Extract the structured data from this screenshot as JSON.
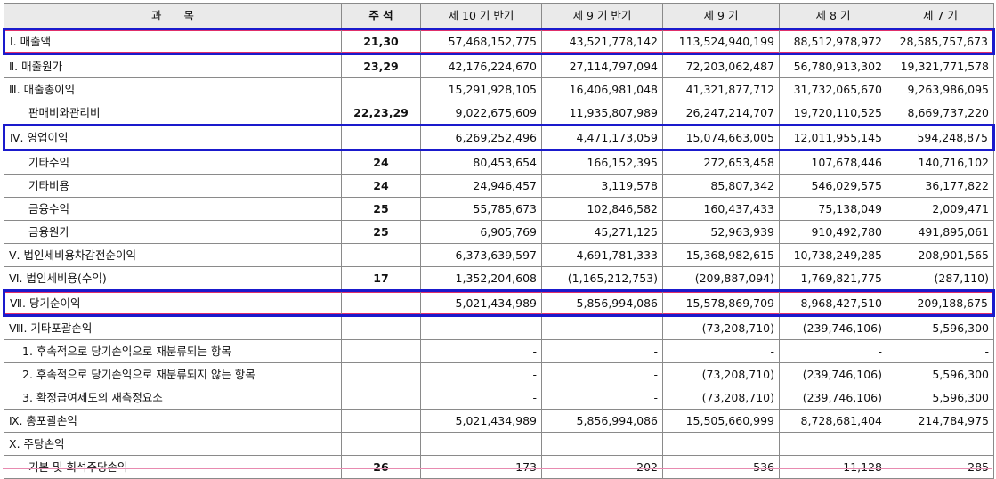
{
  "headers": [
    "과　　목",
    "주 석",
    "제 10 기 반기",
    "제 9 기 반기",
    "제 9 기",
    "제 8 기",
    "제 7 기"
  ],
  "rows": [
    {
      "label": "Ⅰ. 매출액",
      "note": "21,30",
      "values": [
        "57,468,152,775",
        "43,521,778,142",
        "113,524,940,199",
        "88,512,978,972",
        "28,585,757,673"
      ],
      "indent": 0,
      "highlight": "pink"
    },
    {
      "label": "Ⅱ. 매출원가",
      "note": "23,29",
      "values": [
        "42,176,224,670",
        "27,114,797,094",
        "72,203,062,487",
        "56,780,913,302",
        "19,321,771,578"
      ],
      "indent": 0,
      "highlight": ""
    },
    {
      "label": "Ⅲ. 매출총이익",
      "note": "",
      "values": [
        "15,291,928,105",
        "16,406,981,048",
        "41,321,877,712",
        "31,732,065,670",
        "9,263,986,095"
      ],
      "indent": 0,
      "highlight": ""
    },
    {
      "label": "판매비와관리비",
      "note": "22,23,29",
      "values": [
        "9,022,675,609",
        "11,935,807,989",
        "26,247,214,707",
        "19,720,110,525",
        "8,669,737,220"
      ],
      "indent": 1,
      "highlight": ""
    },
    {
      "label": "Ⅳ. 영업이익",
      "note": "",
      "values": [
        "6,269,252,496",
        "4,471,173,059",
        "15,074,663,005",
        "12,011,955,145",
        "594,248,875"
      ],
      "indent": 0,
      "highlight": "blue"
    },
    {
      "label": "기타수익",
      "note": "24",
      "values": [
        "80,453,654",
        "166,152,395",
        "272,653,458",
        "107,678,446",
        "140,716,102"
      ],
      "indent": 1,
      "highlight": ""
    },
    {
      "label": "기타비용",
      "note": "24",
      "values": [
        "24,946,457",
        "3,119,578",
        "85,807,342",
        "546,029,575",
        "36,177,822"
      ],
      "indent": 1,
      "highlight": ""
    },
    {
      "label": "금융수익",
      "note": "25",
      "values": [
        "55,785,673",
        "102,846,582",
        "160,437,433",
        "75,138,049",
        "2,009,471"
      ],
      "indent": 1,
      "highlight": ""
    },
    {
      "label": "금융원가",
      "note": "25",
      "values": [
        "6,905,769",
        "45,271,125",
        "52,963,939",
        "910,492,780",
        "491,895,061"
      ],
      "indent": 1,
      "highlight": ""
    },
    {
      "label": "Ⅴ. 법인세비용차감전순이익",
      "note": "",
      "values": [
        "6,373,639,597",
        "4,691,781,333",
        "15,368,982,615",
        "10,738,249,285",
        "208,901,565"
      ],
      "indent": 0,
      "highlight": ""
    },
    {
      "label": "Ⅵ. 법인세비용(수익)",
      "note": "17",
      "values": [
        "1,352,204,608",
        "(1,165,212,753)",
        "(209,887,094)",
        "1,769,821,775",
        "(287,110)"
      ],
      "indent": 0,
      "highlight": ""
    },
    {
      "label": "Ⅶ. 당기순이익",
      "note": "",
      "values": [
        "5,021,434,989",
        "5,856,994,086",
        "15,578,869,709",
        "8,968,427,510",
        "209,188,675"
      ],
      "indent": 0,
      "highlight": "pink"
    },
    {
      "label": "Ⅷ. 기타포괄손익",
      "note": "",
      "values": [
        "-",
        "-",
        "(73,208,710)",
        "(239,746,106)",
        "5,596,300"
      ],
      "indent": 0,
      "highlight": ""
    },
    {
      "label": "1. 후속적으로 당기손익으로 재분류되는 항목",
      "note": "",
      "values": [
        "-",
        "-",
        "-",
        "-",
        "-"
      ],
      "indent": 2,
      "highlight": ""
    },
    {
      "label": "2. 후속적으로 당기손익으로 재분류되지 않는 항목",
      "note": "",
      "values": [
        "-",
        "-",
        "(73,208,710)",
        "(239,746,106)",
        "5,596,300"
      ],
      "indent": 2,
      "highlight": ""
    },
    {
      "label": "3. 확정급여제도의 재측정요소",
      "note": "",
      "values": [
        "-",
        "-",
        "(73,208,710)",
        "(239,746,106)",
        "5,596,300"
      ],
      "indent": 2,
      "highlight": ""
    },
    {
      "label": "Ⅸ. 총포괄손익",
      "note": "",
      "values": [
        "5,021,434,989",
        "5,856,994,086",
        "15,505,660,999",
        "8,728,681,404",
        "214,784,975"
      ],
      "indent": 0,
      "highlight": ""
    },
    {
      "label": "Ⅹ. 주당손익",
      "note": "",
      "values": [
        "",
        "",
        "",
        "",
        ""
      ],
      "indent": 0,
      "highlight": ""
    },
    {
      "label": "기본 및 희석주당손익",
      "note": "26",
      "values": [
        "173",
        "202",
        "536",
        "11,128",
        "285"
      ],
      "indent": 1,
      "highlight": ""
    }
  ]
}
